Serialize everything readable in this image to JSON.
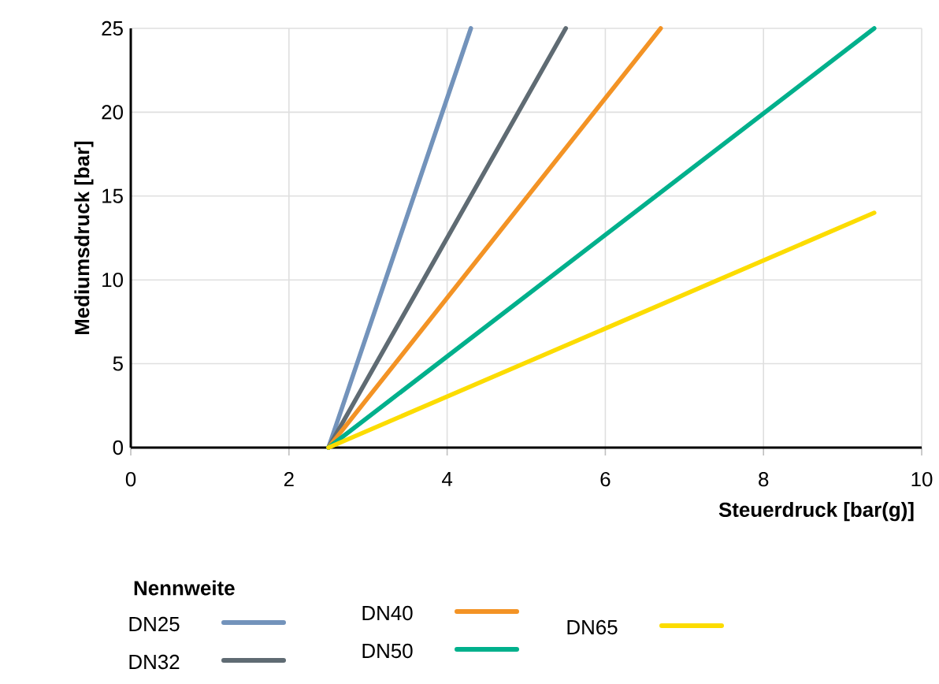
{
  "chart_data": {
    "type": "line",
    "xlabel": "Steuerdruck [bar(g)]",
    "ylabel": "Mediumsdruck [bar]",
    "legend_title": "Nennweite",
    "xlim": [
      0,
      10
    ],
    "ylim": [
      0,
      25
    ],
    "xticks": [
      0,
      2,
      4,
      6,
      8,
      10
    ],
    "yticks": [
      0,
      5,
      10,
      15,
      20,
      25
    ],
    "grid": true,
    "legend": "bottom",
    "marker": "none",
    "line_style": "solid",
    "series": [
      {
        "name": "DN25",
        "color": "#7393bb",
        "x": [
          2.5,
          4.3
        ],
        "values": [
          0,
          25
        ]
      },
      {
        "name": "DN32",
        "color": "#5f6b73",
        "x": [
          2.5,
          5.5
        ],
        "values": [
          0,
          25
        ]
      },
      {
        "name": "DN40",
        "color": "#f39325",
        "x": [
          2.5,
          6.7
        ],
        "values": [
          0,
          25
        ]
      },
      {
        "name": "DN50",
        "color": "#00b08c",
        "x": [
          2.5,
          9.4
        ],
        "values": [
          0,
          25
        ]
      },
      {
        "name": "DN65",
        "color": "#fcdc00",
        "x": [
          2.5,
          9.4
        ],
        "values": [
          0,
          14
        ]
      }
    ]
  }
}
